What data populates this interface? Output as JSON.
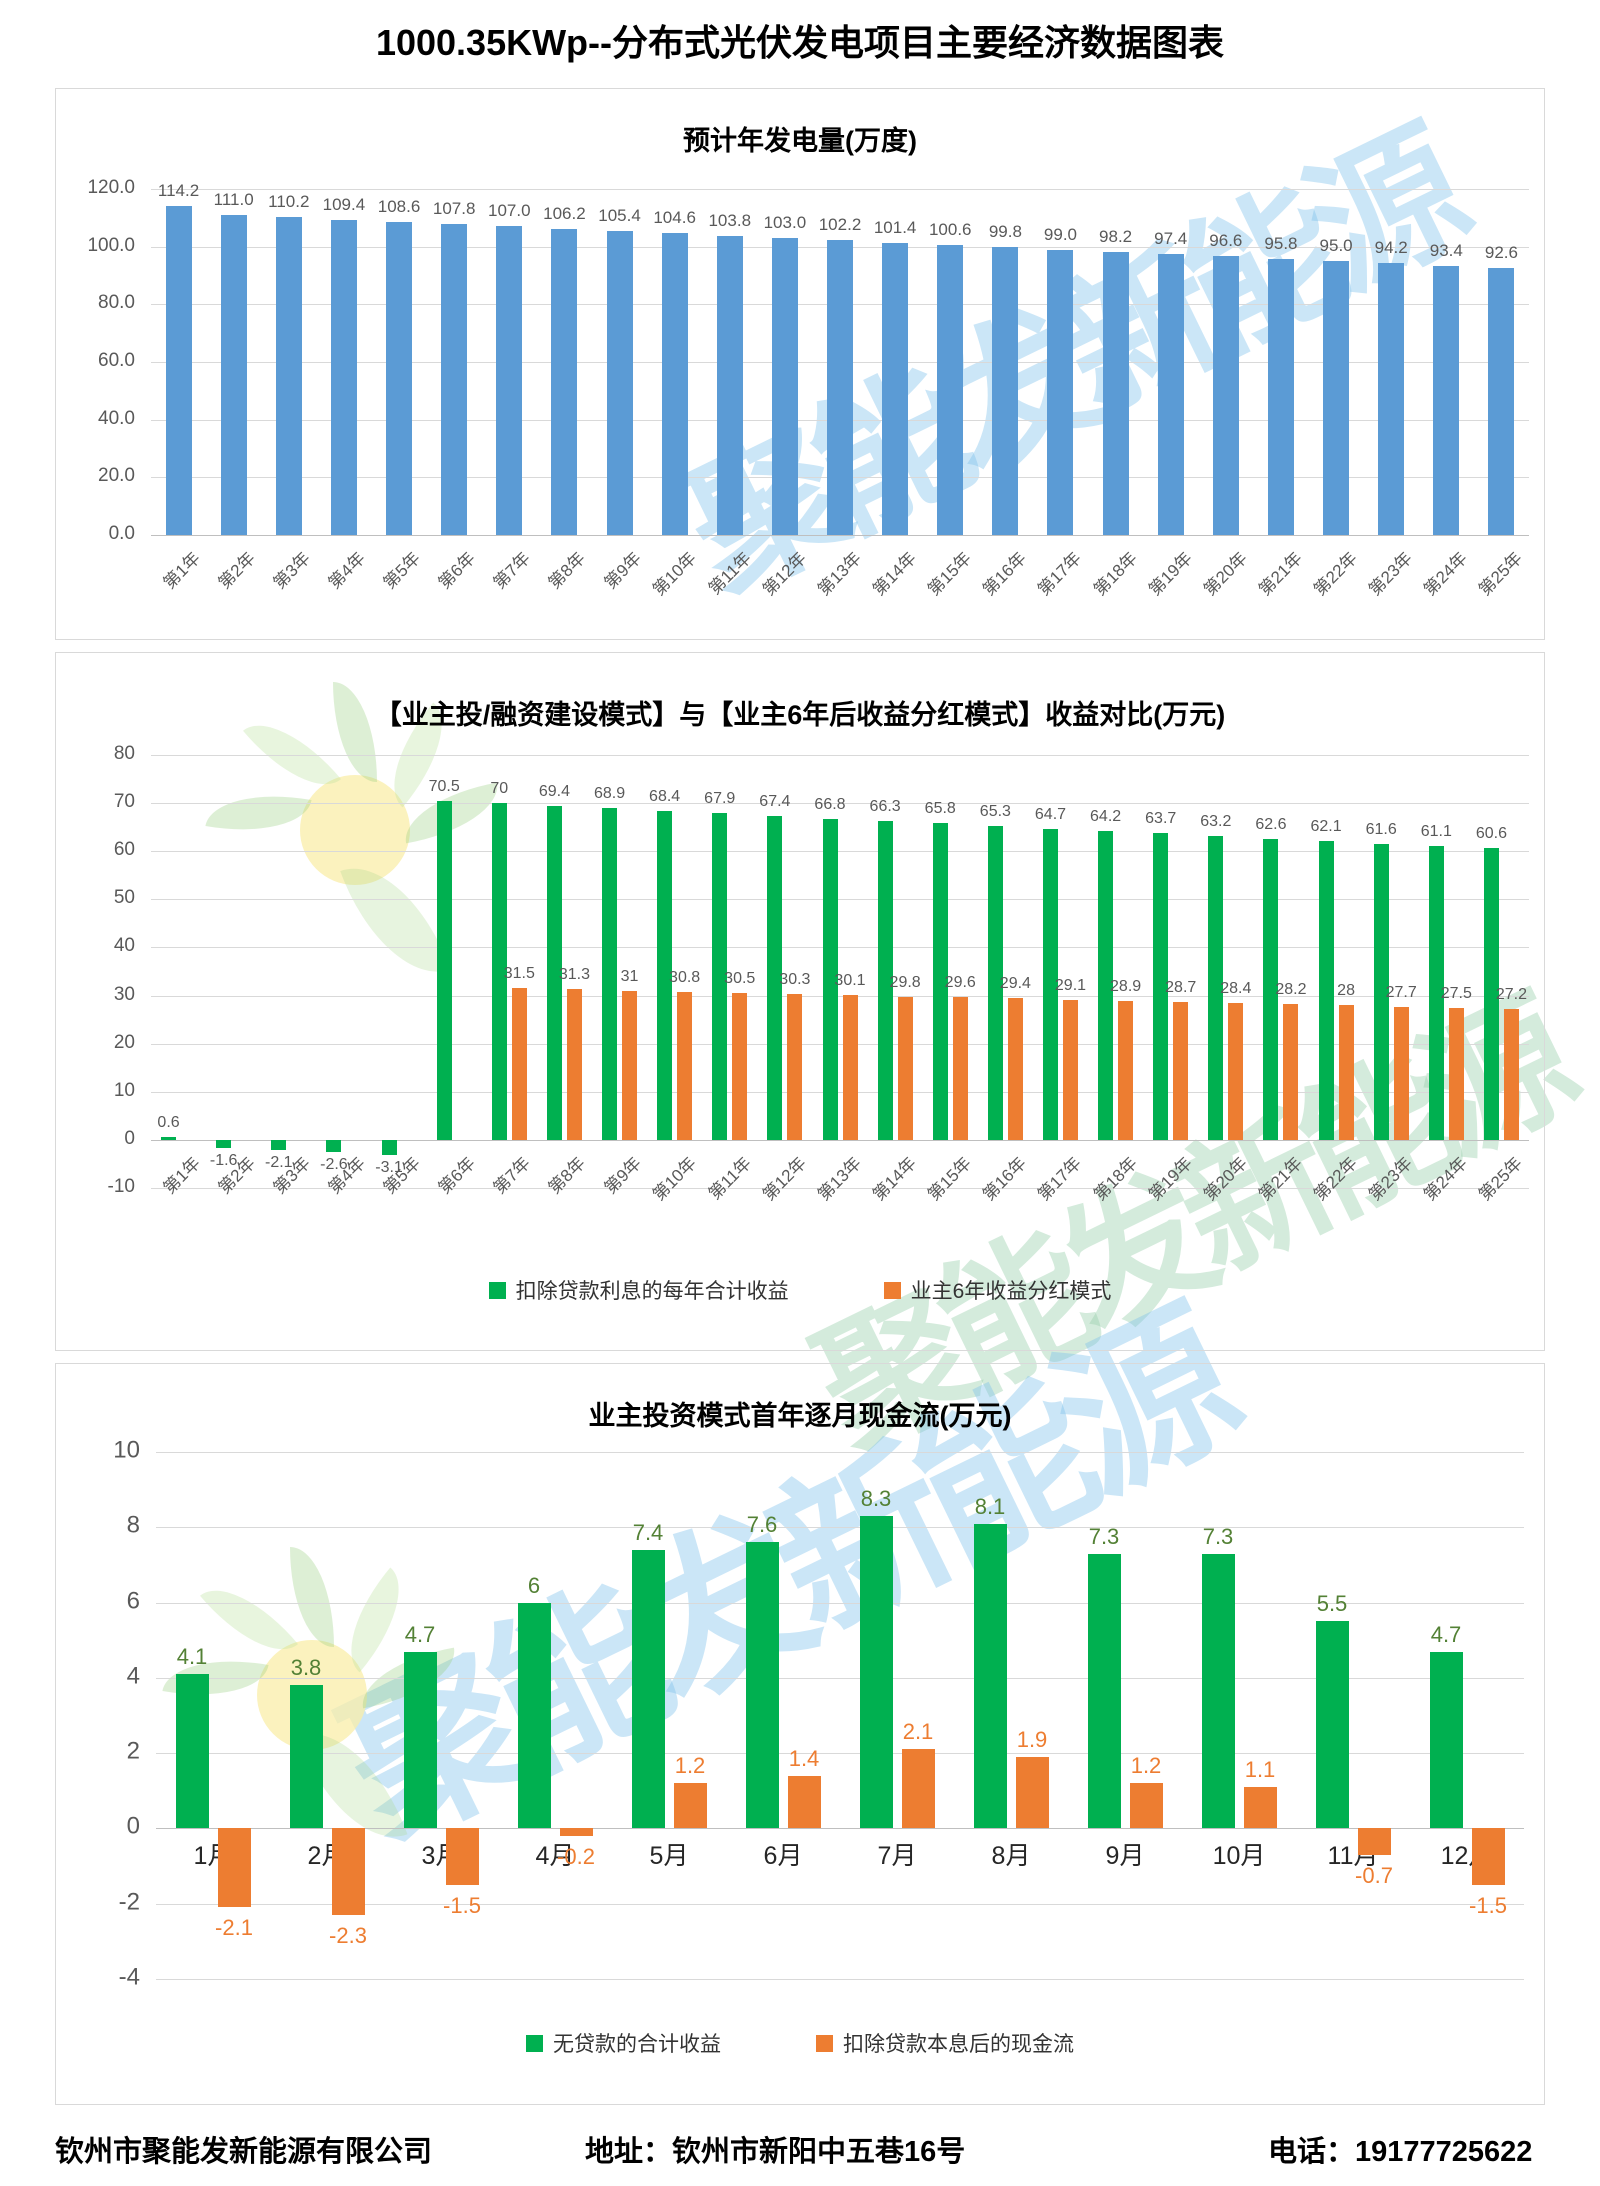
{
  "page_title": "1000.35KWp--分布式光伏发电项目主要经济数据图表",
  "watermark": {
    "text": "聚能发新能源"
  },
  "footer": {
    "company": "钦州市聚能发新能源有限公司",
    "address": "地址：钦州市新阳中五巷16号",
    "phone": "电话：19177725622"
  },
  "colors": {
    "blue_bar": "#5B9BD5",
    "green_bar": "#00B050",
    "orange_bar": "#ED7D31",
    "gray_label": "#595959",
    "dark_green_label": "#538135"
  },
  "chart_data": [
    {
      "type": "bar",
      "title": "预计年发电量(万度)",
      "categories": [
        "第1年",
        "第2年",
        "第3年",
        "第4年",
        "第5年",
        "第6年",
        "第7年",
        "第8年",
        "第9年",
        "第10年",
        "第11年",
        "第12年",
        "第13年",
        "第14年",
        "第15年",
        "第16年",
        "第17年",
        "第18年",
        "第19年",
        "第20年",
        "第21年",
        "第22年",
        "第23年",
        "第24年",
        "第25年"
      ],
      "values": [
        114.2,
        111.0,
        110.2,
        109.4,
        108.6,
        107.8,
        107.0,
        106.2,
        105.4,
        104.6,
        103.8,
        103.0,
        102.2,
        101.4,
        100.6,
        99.8,
        99.0,
        98.2,
        97.4,
        96.6,
        95.8,
        95.0,
        94.2,
        93.4,
        92.6
      ],
      "labels": [
        "114.2",
        "111.0",
        "110.2",
        "109.4",
        "108.6",
        "107.8",
        "107.0",
        "106.2",
        "105.4",
        "104.6",
        "103.8",
        "103.0",
        "102.2",
        "101.4",
        "100.6",
        "99.8",
        "99.0",
        "98.2",
        "97.4",
        "96.6",
        "95.8",
        "95.0",
        "94.2",
        "93.4",
        "92.6"
      ],
      "bar_color": "#5B9BD5",
      "label_color": "#595959",
      "ylim": [
        0,
        120
      ],
      "yticks": [
        0,
        20,
        40,
        60,
        80,
        100,
        120
      ],
      "ytick_labels": [
        "0.0",
        "20.0",
        "40.0",
        "60.0",
        "80.0",
        "100.0",
        "120.0"
      ],
      "grid": true,
      "legend_position": "none"
    },
    {
      "type": "bar",
      "title": "【业主投/融资建设模式】与【业主6年后收益分红模式】收益对比(万元)",
      "categories": [
        "第1年",
        "第2年",
        "第3年",
        "第4年",
        "第5年",
        "第6年",
        "第7年",
        "第8年",
        "第9年",
        "第10年",
        "第11年",
        "第12年",
        "第13年",
        "第14年",
        "第15年",
        "第16年",
        "第17年",
        "第18年",
        "第19年",
        "第20年",
        "第21年",
        "第22年",
        "第23年",
        "第24年",
        "第25年"
      ],
      "series": [
        {
          "name": "扣除贷款利息的每年合计收益",
          "color": "#00B050",
          "label_color": "#595959",
          "values": [
            0.6,
            -1.6,
            -2.1,
            -2.6,
            -3.1,
            70.5,
            70,
            69.4,
            68.9,
            68.4,
            67.9,
            67.4,
            66.8,
            66.3,
            65.8,
            65.3,
            64.7,
            64.2,
            63.7,
            63.2,
            62.6,
            62.1,
            61.6,
            61.1,
            60.6
          ],
          "labels": [
            "0.6",
            "-1.6",
            "-2.1",
            "-2.6",
            "-3.1",
            "70.5",
            "70",
            "69.4",
            "68.9",
            "68.4",
            "67.9",
            "67.4",
            "66.8",
            "66.3",
            "65.8",
            "65.3",
            "64.7",
            "64.2",
            "63.7",
            "63.2",
            "62.6",
            "62.1",
            "61.6",
            "61.1",
            "60.6"
          ]
        },
        {
          "name": "业主6年收益分红模式",
          "color": "#ED7D31",
          "label_color": "#595959",
          "values": [
            null,
            null,
            null,
            null,
            null,
            null,
            31.5,
            31.3,
            31,
            30.8,
            30.5,
            30.3,
            30.1,
            29.8,
            29.6,
            29.4,
            29.1,
            28.9,
            28.7,
            28.4,
            28.2,
            28,
            27.7,
            27.5,
            27.2
          ],
          "labels": [
            null,
            null,
            null,
            null,
            null,
            null,
            "31.5",
            "31.3",
            "31",
            "30.8",
            "30.5",
            "30.3",
            "30.1",
            "29.8",
            "29.6",
            "29.4",
            "29.1",
            "28.9",
            "28.7",
            "28.4",
            "28.2",
            "28",
            "27.7",
            "27.5",
            "27.2"
          ]
        }
      ],
      "ylim": [
        -10,
        80
      ],
      "yticks": [
        -10,
        0,
        10,
        20,
        30,
        40,
        50,
        60,
        70,
        80
      ],
      "ytick_labels": [
        "-10",
        "0",
        "10",
        "20",
        "30",
        "40",
        "50",
        "60",
        "70",
        "80"
      ],
      "grid": true,
      "legend_position": "bottom"
    },
    {
      "type": "bar",
      "title": "业主投资模式首年逐月现金流(万元)",
      "categories": [
        "1月",
        "2月",
        "3月",
        "4月",
        "5月",
        "6月",
        "7月",
        "8月",
        "9月",
        "10月",
        "11月",
        "12月"
      ],
      "series": [
        {
          "name": "无贷款的合计收益",
          "color": "#00B050",
          "label_color": "#538135",
          "values": [
            4.1,
            3.8,
            4.7,
            6,
            7.4,
            7.6,
            8.3,
            8.1,
            7.3,
            7.3,
            5.5,
            4.7
          ],
          "labels": [
            "4.1",
            "3.8",
            "4.7",
            "6",
            "7.4",
            "7.6",
            "8.3",
            "8.1",
            "7.3",
            "7.3",
            "5.5",
            "4.7"
          ]
        },
        {
          "name": "扣除贷款本息后的现金流",
          "color": "#ED7D31",
          "label_color": "#ED7D31",
          "values": [
            -2.1,
            -2.3,
            -1.5,
            -0.2,
            1.2,
            1.4,
            2.1,
            1.9,
            1.2,
            1.1,
            -0.7,
            -1.5
          ],
          "labels": [
            "-2.1",
            "-2.3",
            "-1.5",
            "-0.2",
            "1.2",
            "1.4",
            "2.1",
            "1.9",
            "1.2",
            "1.1",
            "-0.7",
            "-1.5"
          ]
        }
      ],
      "ylim": [
        -4,
        10
      ],
      "yticks": [
        -4,
        -2,
        0,
        2,
        4,
        6,
        8,
        10
      ],
      "ytick_labels": [
        "-4",
        "-2",
        "0",
        "2",
        "4",
        "6",
        "8",
        "10"
      ],
      "grid": true,
      "legend_position": "bottom"
    }
  ]
}
